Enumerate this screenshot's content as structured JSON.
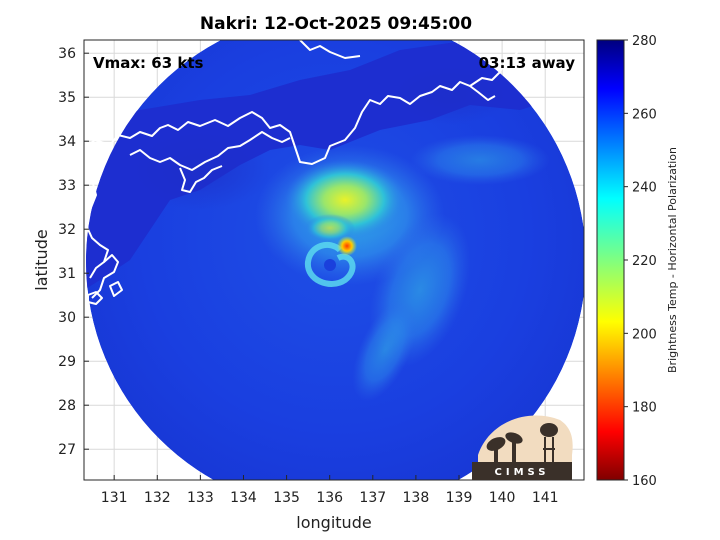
{
  "title": "Nakri: 12-Oct-2025 09:45:00",
  "vmax_text": "Vmax: 63 kts",
  "time_away_text": "03:13 away",
  "xlabel": "longitude",
  "ylabel": "latitude",
  "colorbar": {
    "label": "Brightness Temp - Horizontal Polarization",
    "range": [
      160,
      280
    ],
    "ticks": [
      "280",
      "260",
      "240",
      "220",
      "200",
      "180",
      "160"
    ],
    "colormap": "jet"
  },
  "logo_text": "CIMSS",
  "chart_data": {
    "type": "heatmap",
    "title": "Nakri: 12-Oct-2025 09:45:00",
    "xlabel": "longitude",
    "ylabel": "latitude",
    "xlim": [
      130.3,
      141.9
    ],
    "ylim": [
      26.3,
      36.3
    ],
    "xticks": [
      "131",
      "132",
      "133",
      "134",
      "135",
      "136",
      "137",
      "138",
      "139",
      "140",
      "141"
    ],
    "yticks": [
      "36",
      "35",
      "34",
      "33",
      "32",
      "31",
      "30",
      "29",
      "28",
      "27"
    ],
    "grid": true,
    "storm_center": {
      "lon": 136.2,
      "lat": 31.3
    },
    "coldest_region": {
      "lon": 136.5,
      "lat": 31.6,
      "temp": 195
    },
    "colorbar_range": [
      160,
      280
    ]
  }
}
